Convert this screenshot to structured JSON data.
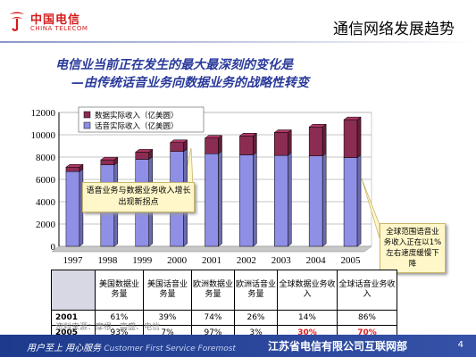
{
  "header": {
    "logo_cn": "中国电信",
    "logo_en": "CHINA TELECOM",
    "title": "通信网络发展趋势"
  },
  "subtitle": {
    "line1": "电信业当前正在发生的最大最深刻的变化是",
    "line2": "—由传统话音业务向数据业务的战略性转变"
  },
  "colors": {
    "data_series": "#8b2c52",
    "voice_series": "#8f8fe6",
    "footer": "#1d3a8c",
    "accent_red": "#d51c1c"
  },
  "chart_data": {
    "type": "bar",
    "stacked": true,
    "categories": [
      "1997",
      "1998",
      "1999",
      "2000",
      "2001",
      "2002",
      "2003",
      "2004",
      "2005"
    ],
    "series": [
      {
        "name": "话音实际收入（亿美圆）",
        "values": [
          6700,
          7300,
          7800,
          8500,
          8300,
          8200,
          8150,
          8100,
          7950
        ]
      },
      {
        "name": "数据实际收入（亿美圆）",
        "values": [
          400,
          450,
          650,
          800,
          1400,
          1700,
          2050,
          2600,
          3400
        ]
      }
    ],
    "ylim": [
      0,
      12000
    ],
    "yticks": [
      "0",
      "2000",
      "4000",
      "6000",
      "8000",
      "10000",
      "12000"
    ],
    "legend_position": "top-left",
    "annotations": [
      "语音业务与数据业务收入增长出现新拐点",
      "全球范围语音业务收入正在以1%左右速度缓慢下降"
    ]
  },
  "table": {
    "headers": [
      "美国数据业务量",
      "美国话音业务量",
      "欧洲数据业务量",
      "欧洲话音业务量",
      "全球数据业务收入",
      "全球话音业务收入"
    ],
    "rows": [
      {
        "year": "2001",
        "values": [
          "61%",
          "39%",
          "74%",
          "26%",
          "14%",
          "86%"
        ]
      },
      {
        "year": "2005",
        "values": [
          "93%",
          "7%",
          "97%",
          "3%",
          "30%",
          "70%"
        ]
      }
    ]
  },
  "source": "资料来源：摩根、高盛、电信",
  "footer": {
    "slogan": "用户至上  用心服务",
    "slogan_en": "Customer First Service Foremost",
    "company": "江苏省电信有限公司互联网部",
    "page": "4"
  }
}
